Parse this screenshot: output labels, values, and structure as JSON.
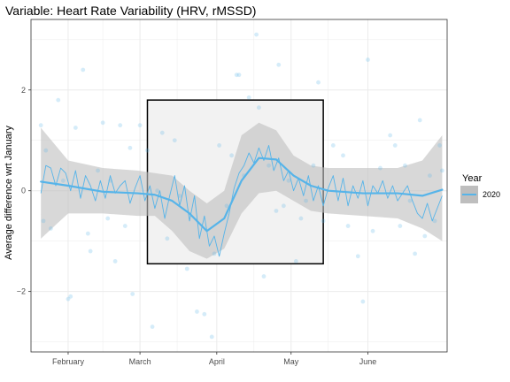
{
  "chart_data": {
    "type": "line",
    "title": "Variable: Heart Rate Variability (HRV, rMSSD)",
    "xlabel": "",
    "ylabel": "Average difference wrt January",
    "x_ticks": [
      "February",
      "March",
      "April",
      "May",
      "June"
    ],
    "y_ticks": [
      -2,
      0,
      2
    ],
    "xlim": [
      "2020-01-17",
      "2020-07-03"
    ],
    "ylim": [
      -3.2,
      3.4
    ],
    "grid": true,
    "legend": {
      "title": "Year",
      "position": "right",
      "entries": [
        "2020"
      ]
    },
    "colors": {
      "series": "#56B4E9",
      "ribbon": "#bebebe",
      "highlight_fill": "#f2f2f2",
      "highlight_border": "#000000",
      "panel_border": "#333333",
      "grid": "#ebebeb"
    },
    "highlight_region": {
      "x": [
        "2020-03-04",
        "2020-05-14"
      ],
      "y": [
        -1.45,
        1.8
      ]
    },
    "series": [
      {
        "name": "2020",
        "smooth": [
          [
            "2020-01-21",
            0.18
          ],
          [
            "2020-02-01",
            0.1
          ],
          [
            "2020-02-15",
            -0.02
          ],
          [
            "2020-02-29",
            -0.05
          ],
          [
            "2020-03-07",
            -0.08
          ],
          [
            "2020-03-14",
            -0.2
          ],
          [
            "2020-03-21",
            -0.45
          ],
          [
            "2020-03-28",
            -0.8
          ],
          [
            "2020-04-04",
            -0.55
          ],
          [
            "2020-04-11",
            0.2
          ],
          [
            "2020-04-18",
            0.65
          ],
          [
            "2020-04-25",
            0.62
          ],
          [
            "2020-05-02",
            0.3
          ],
          [
            "2020-05-09",
            0.1
          ],
          [
            "2020-05-16",
            0.0
          ],
          [
            "2020-05-30",
            -0.05
          ],
          [
            "2020-06-13",
            -0.05
          ],
          [
            "2020-06-23",
            -0.1
          ],
          [
            "2020-07-01",
            0.02
          ]
        ],
        "ribbon_upper": [
          [
            "2020-01-21",
            1.25
          ],
          [
            "2020-02-01",
            0.6
          ],
          [
            "2020-02-15",
            0.45
          ],
          [
            "2020-02-29",
            0.4
          ],
          [
            "2020-03-07",
            0.35
          ],
          [
            "2020-03-14",
            0.3
          ],
          [
            "2020-03-21",
            0.0
          ],
          [
            "2020-03-28",
            -0.25
          ],
          [
            "2020-04-04",
            0.0
          ],
          [
            "2020-04-11",
            1.1
          ],
          [
            "2020-04-18",
            1.35
          ],
          [
            "2020-04-25",
            1.2
          ],
          [
            "2020-05-02",
            0.7
          ],
          [
            "2020-05-09",
            0.5
          ],
          [
            "2020-05-16",
            0.45
          ],
          [
            "2020-05-30",
            0.45
          ],
          [
            "2020-06-13",
            0.45
          ],
          [
            "2020-06-23",
            0.6
          ],
          [
            "2020-07-01",
            1.1
          ]
        ],
        "ribbon_lower": [
          [
            "2020-01-21",
            -0.95
          ],
          [
            "2020-02-01",
            -0.45
          ],
          [
            "2020-02-15",
            -0.45
          ],
          [
            "2020-02-29",
            -0.5
          ],
          [
            "2020-03-07",
            -0.5
          ],
          [
            "2020-03-14",
            -0.8
          ],
          [
            "2020-03-21",
            -1.2
          ],
          [
            "2020-03-28",
            -1.35
          ],
          [
            "2020-04-04",
            -1.15
          ],
          [
            "2020-04-11",
            -0.45
          ],
          [
            "2020-04-18",
            -0.05
          ],
          [
            "2020-04-25",
            0.0
          ],
          [
            "2020-05-02",
            -0.2
          ],
          [
            "2020-05-09",
            -0.4
          ],
          [
            "2020-05-16",
            -0.45
          ],
          [
            "2020-05-30",
            -0.5
          ],
          [
            "2020-06-13",
            -0.55
          ],
          [
            "2020-06-23",
            -0.75
          ],
          [
            "2020-07-01",
            -1.0
          ]
        ],
        "rolling": [
          [
            "2020-01-21",
            -0.05
          ],
          [
            "2020-01-23",
            0.5
          ],
          [
            "2020-01-25",
            0.45
          ],
          [
            "2020-01-27",
            0.1
          ],
          [
            "2020-01-29",
            0.45
          ],
          [
            "2020-01-31",
            0.35
          ],
          [
            "2020-02-02",
            0.0
          ],
          [
            "2020-02-04",
            0.4
          ],
          [
            "2020-02-06",
            -0.15
          ],
          [
            "2020-02-08",
            0.3
          ],
          [
            "2020-02-10",
            0.1
          ],
          [
            "2020-02-12",
            -0.2
          ],
          [
            "2020-02-14",
            0.2
          ],
          [
            "2020-02-16",
            -0.15
          ],
          [
            "2020-02-18",
            0.3
          ],
          [
            "2020-02-20",
            -0.05
          ],
          [
            "2020-02-22",
            0.1
          ],
          [
            "2020-02-24",
            0.2
          ],
          [
            "2020-02-26",
            -0.25
          ],
          [
            "2020-02-28",
            0.05
          ],
          [
            "2020-03-01",
            0.3
          ],
          [
            "2020-03-03",
            -0.2
          ],
          [
            "2020-03-05",
            0.1
          ],
          [
            "2020-03-07",
            -0.35
          ],
          [
            "2020-03-09",
            0.0
          ],
          [
            "2020-03-11",
            -0.55
          ],
          [
            "2020-03-13",
            -0.1
          ],
          [
            "2020-03-15",
            0.3
          ],
          [
            "2020-03-17",
            -0.3
          ],
          [
            "2020-03-19",
            0.1
          ],
          [
            "2020-03-21",
            -0.6
          ],
          [
            "2020-03-23",
            -0.1
          ],
          [
            "2020-03-25",
            -0.95
          ],
          [
            "2020-03-27",
            -0.5
          ],
          [
            "2020-03-29",
            -1.1
          ],
          [
            "2020-03-31",
            -0.9
          ],
          [
            "2020-04-02",
            -1.3
          ],
          [
            "2020-04-04",
            -0.85
          ],
          [
            "2020-04-06",
            -0.45
          ],
          [
            "2020-04-08",
            0.05
          ],
          [
            "2020-04-10",
            0.35
          ],
          [
            "2020-04-12",
            0.5
          ],
          [
            "2020-04-14",
            0.75
          ],
          [
            "2020-04-16",
            0.55
          ],
          [
            "2020-04-18",
            0.85
          ],
          [
            "2020-04-20",
            0.6
          ],
          [
            "2020-04-22",
            0.9
          ],
          [
            "2020-04-24",
            0.4
          ],
          [
            "2020-04-26",
            0.65
          ],
          [
            "2020-04-28",
            0.2
          ],
          [
            "2020-04-30",
            0.4
          ],
          [
            "2020-05-02",
            0.0
          ],
          [
            "2020-05-04",
            0.25
          ],
          [
            "2020-05-06",
            -0.1
          ],
          [
            "2020-05-08",
            0.3
          ],
          [
            "2020-05-10",
            -0.2
          ],
          [
            "2020-05-12",
            0.1
          ],
          [
            "2020-05-14",
            -0.3
          ],
          [
            "2020-05-16",
            0.05
          ],
          [
            "2020-05-18",
            0.3
          ],
          [
            "2020-05-20",
            -0.2
          ],
          [
            "2020-05-22",
            0.25
          ],
          [
            "2020-05-24",
            -0.3
          ],
          [
            "2020-05-26",
            0.1
          ],
          [
            "2020-05-28",
            -0.15
          ],
          [
            "2020-05-30",
            0.2
          ],
          [
            "2020-06-01",
            -0.3
          ],
          [
            "2020-06-03",
            0.1
          ],
          [
            "2020-06-05",
            -0.05
          ],
          [
            "2020-06-07",
            0.2
          ],
          [
            "2020-06-09",
            -0.15
          ],
          [
            "2020-06-11",
            0.1
          ],
          [
            "2020-06-13",
            -0.2
          ],
          [
            "2020-06-15",
            -0.05
          ],
          [
            "2020-06-17",
            0.1
          ],
          [
            "2020-06-19",
            -0.2
          ],
          [
            "2020-06-21",
            -0.45
          ],
          [
            "2020-06-23",
            -0.55
          ],
          [
            "2020-06-25",
            -0.25
          ],
          [
            "2020-06-27",
            -0.6
          ],
          [
            "2020-06-29",
            -0.35
          ],
          [
            "2020-07-01",
            -0.1
          ]
        ],
        "points": [
          [
            "2020-01-21",
            1.3
          ],
          [
            "2020-01-22",
            -0.6
          ],
          [
            "2020-01-23",
            0.8
          ],
          [
            "2020-01-25",
            -0.75
          ],
          [
            "2020-01-28",
            1.8
          ],
          [
            "2020-01-30",
            0.2
          ],
          [
            "2020-02-01",
            -2.15
          ],
          [
            "2020-02-02",
            -2.1
          ],
          [
            "2020-02-04",
            1.25
          ],
          [
            "2020-02-07",
            2.4
          ],
          [
            "2020-02-09",
            -0.85
          ],
          [
            "2020-02-10",
            -1.2
          ],
          [
            "2020-02-13",
            0.4
          ],
          [
            "2020-02-15",
            1.35
          ],
          [
            "2020-02-17",
            -0.55
          ],
          [
            "2020-02-18",
            0.2
          ],
          [
            "2020-02-20",
            -1.4
          ],
          [
            "2020-02-22",
            1.3
          ],
          [
            "2020-02-24",
            -0.7
          ],
          [
            "2020-02-26",
            0.85
          ],
          [
            "2020-02-27",
            -2.05
          ],
          [
            "2020-03-01",
            1.3
          ],
          [
            "2020-03-04",
            0.8
          ],
          [
            "2020-03-06",
            -2.7
          ],
          [
            "2020-03-08",
            0.0
          ],
          [
            "2020-03-10",
            1.15
          ],
          [
            "2020-03-12",
            -0.95
          ],
          [
            "2020-03-15",
            1.0
          ],
          [
            "2020-03-17",
            -0.1
          ],
          [
            "2020-03-20",
            -1.55
          ],
          [
            "2020-03-24",
            -2.4
          ],
          [
            "2020-03-27",
            -2.45
          ],
          [
            "2020-03-30",
            -2.9
          ],
          [
            "2020-03-31",
            -1.25
          ],
          [
            "2020-04-02",
            0.9
          ],
          [
            "2020-04-05",
            -0.3
          ],
          [
            "2020-04-07",
            0.7
          ],
          [
            "2020-04-09",
            2.3
          ],
          [
            "2020-04-10",
            2.3
          ],
          [
            "2020-04-12",
            0.3
          ],
          [
            "2020-04-14",
            1.85
          ],
          [
            "2020-04-17",
            3.1
          ],
          [
            "2020-04-18",
            1.65
          ],
          [
            "2020-04-20",
            -1.7
          ],
          [
            "2020-04-22",
            0.5
          ],
          [
            "2020-04-25",
            -0.4
          ],
          [
            "2020-04-26",
            2.5
          ],
          [
            "2020-04-28",
            -0.3
          ],
          [
            "2020-04-30",
            0.2
          ],
          [
            "2020-05-03",
            -1.4
          ],
          [
            "2020-05-05",
            -0.55
          ],
          [
            "2020-05-07",
            -0.2
          ],
          [
            "2020-05-10",
            0.5
          ],
          [
            "2020-05-12",
            2.15
          ],
          [
            "2020-05-14",
            -0.6
          ],
          [
            "2020-05-18",
            0.9
          ],
          [
            "2020-05-22",
            0.7
          ],
          [
            "2020-05-24",
            -0.7
          ],
          [
            "2020-05-28",
            -1.3
          ],
          [
            "2020-05-30",
            -2.2
          ],
          [
            "2020-06-01",
            2.6
          ],
          [
            "2020-06-03",
            -0.8
          ],
          [
            "2020-06-06",
            0.45
          ],
          [
            "2020-06-10",
            1.1
          ],
          [
            "2020-06-12",
            0.9
          ],
          [
            "2020-06-14",
            -0.7
          ],
          [
            "2020-06-16",
            0.5
          ],
          [
            "2020-06-18",
            -0.2
          ],
          [
            "2020-06-20",
            -1.25
          ],
          [
            "2020-06-22",
            1.4
          ],
          [
            "2020-06-24",
            -0.9
          ],
          [
            "2020-06-26",
            0.3
          ],
          [
            "2020-06-28",
            -0.6
          ],
          [
            "2020-06-30",
            0.9
          ],
          [
            "2020-07-01",
            0.4
          ]
        ]
      }
    ]
  }
}
